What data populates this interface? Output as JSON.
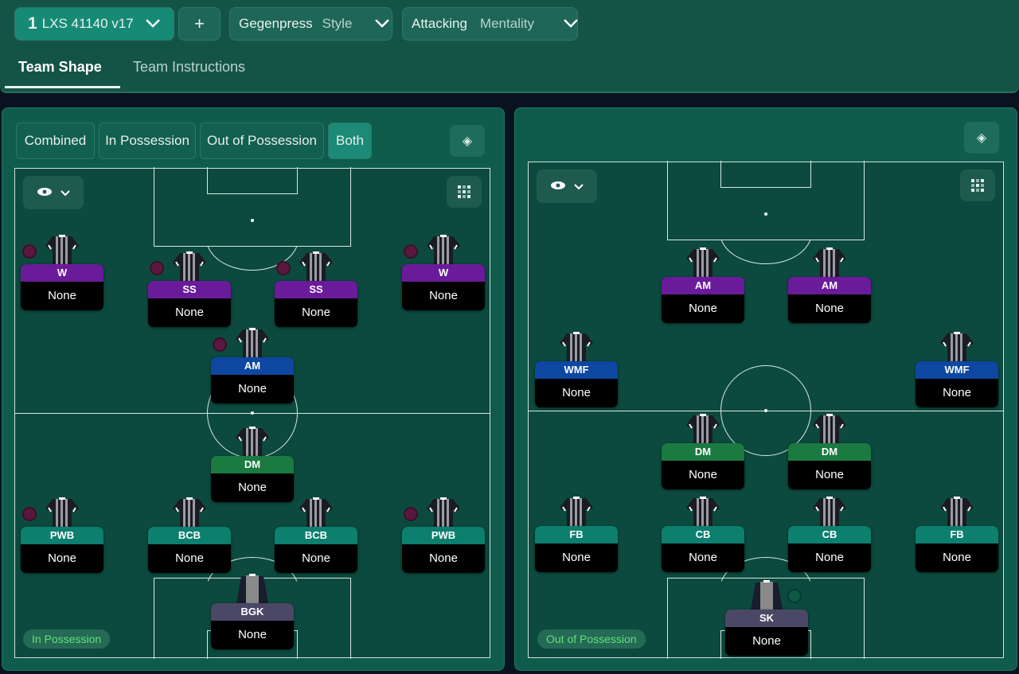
{
  "header": {
    "tactic_number": "1",
    "tactic_name": "LXS 41140 v17",
    "add_label": "+",
    "style_value": "Gegenpress",
    "style_label": "Style",
    "mentality_value": "Attacking",
    "mentality_label": "Mentality"
  },
  "tabs": [
    {
      "label": "Team Shape",
      "active": true
    },
    {
      "label": "Team Instructions",
      "active": false
    }
  ],
  "view_toggle": [
    "Combined",
    "In Possession",
    "Out of Possession",
    "Both"
  ],
  "view_selected": "Both",
  "colors": {
    "attack": "#6a1b9a",
    "am": "#0d47a1",
    "dm": "#1a7a40",
    "def": "#0d7f6f",
    "gk": "#4b4766",
    "accent": "#1c8a76"
  },
  "in_possession": {
    "label": "In Possession",
    "players": [
      {
        "role": "W",
        "name": "None",
        "line": "attack",
        "badge": true
      },
      {
        "role": "SS",
        "name": "None",
        "line": "attack",
        "badge": true
      },
      {
        "role": "SS",
        "name": "None",
        "line": "attack",
        "badge": true
      },
      {
        "role": "W",
        "name": "None",
        "line": "attack",
        "badge": true
      },
      {
        "role": "AM",
        "name": "None",
        "line": "am",
        "badge": true
      },
      {
        "role": "DM",
        "name": "None",
        "line": "dm",
        "badge": false
      },
      {
        "role": "PWB",
        "name": "None",
        "line": "def",
        "badge": true
      },
      {
        "role": "BCB",
        "name": "None",
        "line": "def",
        "badge": false
      },
      {
        "role": "BCB",
        "name": "None",
        "line": "def",
        "badge": false
      },
      {
        "role": "PWB",
        "name": "None",
        "line": "def",
        "badge": true
      },
      {
        "role": "BGK",
        "name": "None",
        "line": "gk",
        "badge": false
      }
    ]
  },
  "out_of_possession": {
    "label": "Out of Possession",
    "players": [
      {
        "role": "AM",
        "name": "None",
        "line": "attack",
        "badge": false
      },
      {
        "role": "AM",
        "name": "None",
        "line": "attack",
        "badge": false
      },
      {
        "role": "WMF",
        "name": "None",
        "line": "am",
        "badge": false
      },
      {
        "role": "WMF",
        "name": "None",
        "line": "am",
        "badge": false
      },
      {
        "role": "DM",
        "name": "None",
        "line": "dm",
        "badge": false
      },
      {
        "role": "DM",
        "name": "None",
        "line": "dm",
        "badge": false
      },
      {
        "role": "FB",
        "name": "None",
        "line": "def",
        "badge": false
      },
      {
        "role": "CB",
        "name": "None",
        "line": "def",
        "badge": false
      },
      {
        "role": "CB",
        "name": "None",
        "line": "def",
        "badge": false
      },
      {
        "role": "FB",
        "name": "None",
        "line": "def",
        "badge": false
      },
      {
        "role": "SK",
        "name": "None",
        "line": "gk",
        "badge": true
      }
    ]
  }
}
